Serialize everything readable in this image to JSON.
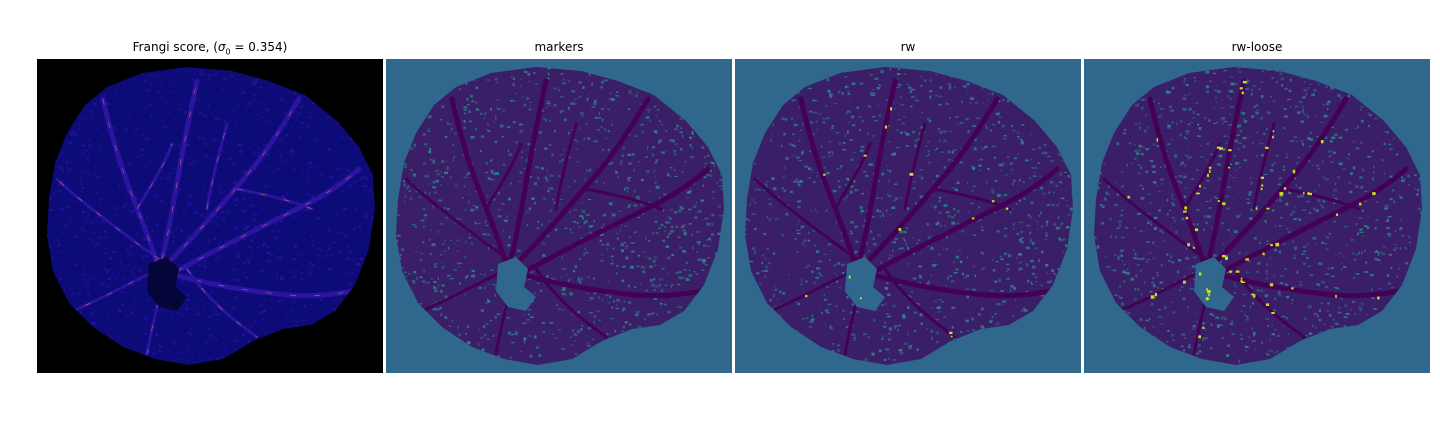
{
  "panels": [
    {
      "id": "frangi",
      "title_prefix": "Frangi score, (",
      "title_sigma": "σ",
      "title_sub": "0",
      "title_suffix": " = 0.354)"
    },
    {
      "id": "markers",
      "title": "markers"
    },
    {
      "id": "rw",
      "title": "rw"
    },
    {
      "id": "rw-loose",
      "title": "rw-loose"
    }
  ],
  "colors": {
    "frangi_background": "#000000",
    "frangi_tissue": "#0c0b78",
    "frangi_vessel": "#2a14a0",
    "frangi_highlight": "#d05a7a",
    "viridis_background": "#30678d",
    "viridis_tissue": "#3b1e68",
    "viridis_dark": "#440154",
    "viridis_speck": "#2e8f8a",
    "viridis_bright": "#c8e020"
  }
}
